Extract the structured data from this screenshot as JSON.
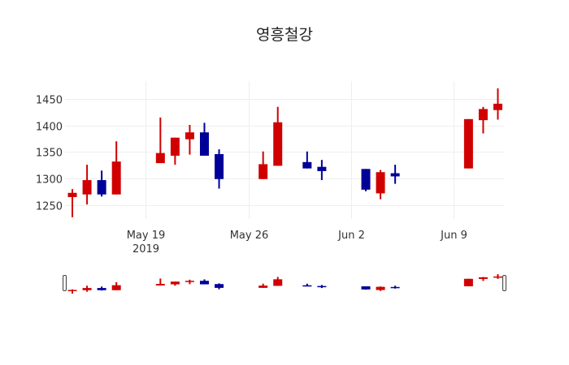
{
  "chart_data": {
    "type": "candlestick",
    "title": "영흥철강",
    "xlabel": "",
    "ylabel": "",
    "increasing_color": "#d10000",
    "decreasing_color": "#000099",
    "grid": true,
    "rangeslider": true,
    "ylim": [
      1223.7,
      1483.6
    ],
    "yticks": [
      1250,
      1300,
      1350,
      1400,
      1450
    ],
    "xrange": [
      "2019-05-13T12:00",
      "2019-06-12T10:00"
    ],
    "xticks": [
      {
        "date": "2019-05-19",
        "label": "May 19",
        "sublabel": "2019"
      },
      {
        "date": "2019-05-26",
        "label": "May 26",
        "sublabel": ""
      },
      {
        "date": "2019-06-02",
        "label": "Jun 2",
        "sublabel": ""
      },
      {
        "date": "2019-06-09",
        "label": "Jun 9",
        "sublabel": ""
      }
    ],
    "x": [
      "2019-05-14",
      "2019-05-15",
      "2019-05-16",
      "2019-05-17",
      "2019-05-20",
      "2019-05-21",
      "2019-05-22",
      "2019-05-23",
      "2019-05-24",
      "2019-05-27",
      "2019-05-28",
      "2019-05-30",
      "2019-05-31",
      "2019-06-03",
      "2019-06-04",
      "2019-06-05",
      "2019-06-10",
      "2019-06-11",
      "2019-06-12"
    ],
    "open": [
      1265,
      1270,
      1297,
      1270,
      1329,
      1343,
      1374,
      1387,
      1346,
      1299,
      1324,
      1331,
      1322,
      1318,
      1272,
      1310,
      1319,
      1410,
      1429
    ],
    "high": [
      1280,
      1326,
      1315,
      1370,
      1415,
      1377,
      1401,
      1405,
      1355,
      1351,
      1435,
      1351,
      1335,
      1318,
      1316,
      1326,
      1412,
      1435,
      1470
    ],
    "low": [
      1227,
      1251,
      1266,
      1270,
      1329,
      1326,
      1345,
      1343,
      1281,
      1299,
      1324,
      1319,
      1297,
      1276,
      1261,
      1290,
      1319,
      1385,
      1411
    ],
    "close": [
      1273,
      1297,
      1270,
      1332,
      1348,
      1377,
      1387,
      1343,
      1299,
      1327,
      1406,
      1319,
      1314,
      1279,
      1312,
      1304,
      1412,
      1431,
      1441
    ]
  }
}
